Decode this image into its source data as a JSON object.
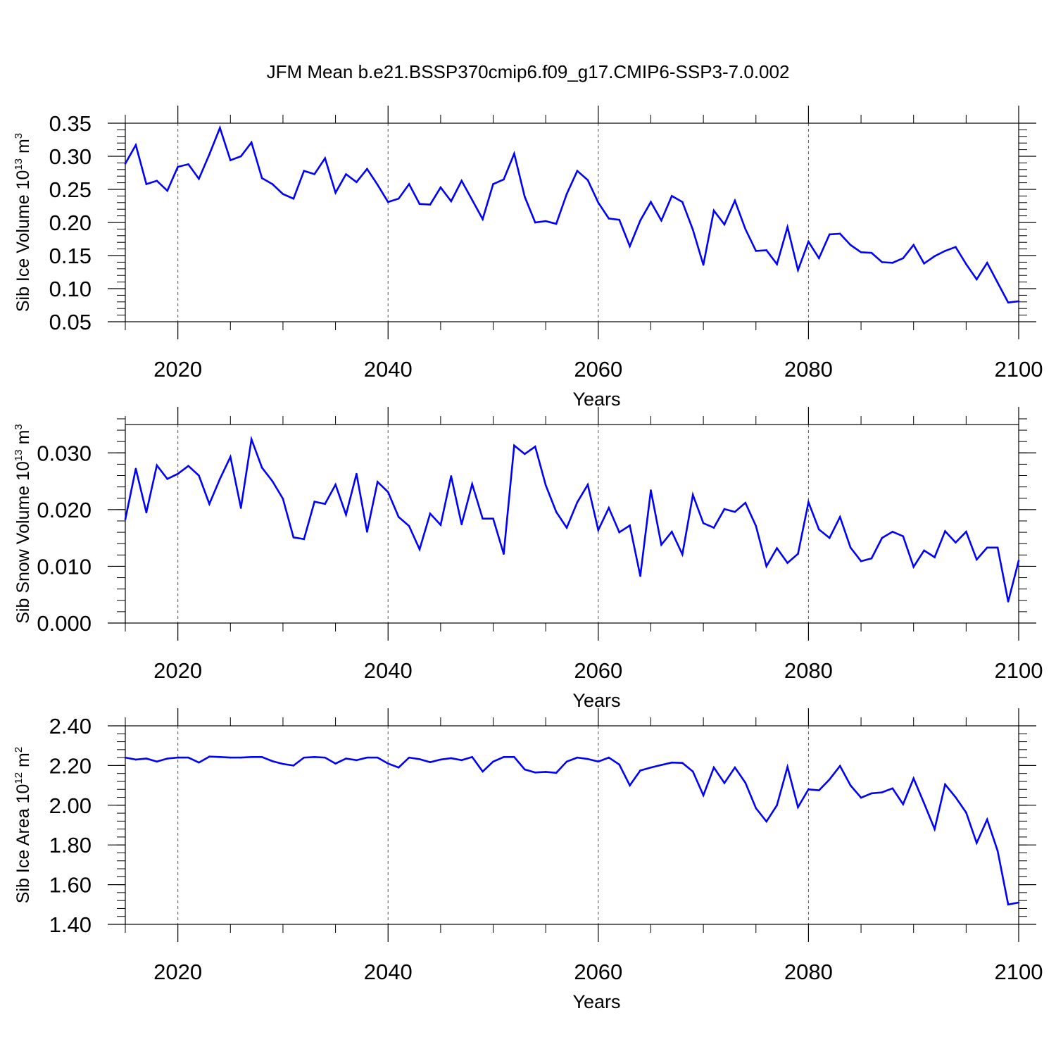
{
  "title": "JFM Mean b.e21.BSSP370cmip6.f09_g17.CMIP6-SSP3-7.0.002",
  "line_color": "#0000ff",
  "chart_data": [
    {
      "type": "line",
      "ylabel": {
        "prefix": "Sib Ice Volume 10",
        "exp": "13",
        "unit": " m",
        "unit_exp": "3"
      },
      "xlabel": "Years",
      "xlim": [
        2015,
        2100
      ],
      "ylim": [
        0.05,
        0.35
      ],
      "x_ticks": [
        2020,
        2040,
        2060,
        2080,
        2100
      ],
      "y_ticks": [
        "0.05",
        "0.10",
        "0.15",
        "0.20",
        "0.25",
        "0.30",
        "0.35"
      ],
      "y_minor": 0.01,
      "grid": "dashed vertical lines at major x ticks",
      "x": [
        2015,
        2016,
        2017,
        2018,
        2019,
        2020,
        2021,
        2022,
        2023,
        2024,
        2025,
        2026,
        2027,
        2028,
        2029,
        2030,
        2031,
        2032,
        2033,
        2034,
        2035,
        2036,
        2037,
        2038,
        2039,
        2040,
        2041,
        2042,
        2043,
        2044,
        2045,
        2046,
        2047,
        2048,
        2049,
        2050,
        2051,
        2052,
        2053,
        2054,
        2055,
        2056,
        2057,
        2058,
        2059,
        2060,
        2061,
        2062,
        2063,
        2064,
        2065,
        2066,
        2067,
        2068,
        2069,
        2070,
        2071,
        2072,
        2073,
        2074,
        2075,
        2076,
        2077,
        2078,
        2079,
        2080,
        2081,
        2082,
        2083,
        2084,
        2085,
        2086,
        2087,
        2088,
        2089,
        2090,
        2091,
        2092,
        2093,
        2094,
        2095,
        2096,
        2097,
        2098,
        2099,
        2100
      ],
      "values": [
        0.289,
        0.317,
        0.258,
        0.263,
        0.248,
        0.284,
        0.288,
        0.266,
        0.303,
        0.343,
        0.294,
        0.3,
        0.321,
        0.267,
        0.258,
        0.243,
        0.236,
        0.278,
        0.273,
        0.297,
        0.245,
        0.273,
        0.261,
        0.281,
        0.257,
        0.231,
        0.236,
        0.258,
        0.228,
        0.227,
        0.253,
        0.232,
        0.263,
        0.234,
        0.205,
        0.258,
        0.265,
        0.304,
        0.239,
        0.2,
        0.202,
        0.198,
        0.243,
        0.278,
        0.264,
        0.23,
        0.206,
        0.204,
        0.164,
        0.203,
        0.231,
        0.203,
        0.24,
        0.231,
        0.189,
        0.136,
        0.218,
        0.197,
        0.233,
        0.19,
        0.157,
        0.158,
        0.137,
        0.193,
        0.128,
        0.171,
        0.146,
        0.182,
        0.183,
        0.166,
        0.155,
        0.154,
        0.14,
        0.139,
        0.146,
        0.166,
        0.138,
        0.149,
        0.157,
        0.163,
        0.137,
        0.114,
        0.139,
        0.109,
        0.079,
        0.081
      ]
    },
    {
      "type": "line",
      "ylabel": {
        "prefix": "Sib Snow Volume 10",
        "exp": "13",
        "unit": " m",
        "unit_exp": "3"
      },
      "xlabel": "Years",
      "xlim": [
        2015,
        2100
      ],
      "ylim": [
        0.0,
        0.035
      ],
      "x_ticks": [
        2020,
        2040,
        2060,
        2080,
        2100
      ],
      "y_ticks": [
        "0.000",
        "0.010",
        "0.020",
        "0.030"
      ],
      "y_minor": 0.002,
      "grid": "dashed vertical lines at major x ticks",
      "x": [
        2015,
        2016,
        2017,
        2018,
        2019,
        2020,
        2021,
        2022,
        2023,
        2024,
        2025,
        2026,
        2027,
        2028,
        2029,
        2030,
        2031,
        2032,
        2033,
        2034,
        2035,
        2036,
        2037,
        2038,
        2039,
        2040,
        2041,
        2042,
        2043,
        2044,
        2045,
        2046,
        2047,
        2048,
        2049,
        2050,
        2051,
        2052,
        2053,
        2054,
        2055,
        2056,
        2057,
        2058,
        2059,
        2060,
        2061,
        2062,
        2063,
        2064,
        2065,
        2066,
        2067,
        2068,
        2069,
        2070,
        2071,
        2072,
        2073,
        2074,
        2075,
        2076,
        2077,
        2078,
        2079,
        2080,
        2081,
        2082,
        2083,
        2084,
        2085,
        2086,
        2087,
        2088,
        2089,
        2090,
        2091,
        2092,
        2093,
        2094,
        2095,
        2096,
        2097,
        2098,
        2099,
        2100
      ],
      "values": [
        0.0183,
        0.0272,
        0.0195,
        0.0278,
        0.0254,
        0.0263,
        0.0277,
        0.026,
        0.021,
        0.0254,
        0.0293,
        0.0203,
        0.0324,
        0.0274,
        0.025,
        0.0219,
        0.0151,
        0.0148,
        0.0214,
        0.021,
        0.0244,
        0.0191,
        0.0263,
        0.0161,
        0.0249,
        0.0231,
        0.0187,
        0.0171,
        0.013,
        0.0193,
        0.0173,
        0.0259,
        0.0174,
        0.0245,
        0.0184,
        0.0184,
        0.0122,
        0.0313,
        0.0298,
        0.0311,
        0.0243,
        0.0196,
        0.0168,
        0.0213,
        0.0244,
        0.0164,
        0.0203,
        0.016,
        0.0172,
        0.0083,
        0.0234,
        0.0138,
        0.0161,
        0.0121,
        0.0226,
        0.0176,
        0.0168,
        0.0201,
        0.0196,
        0.0212,
        0.0171,
        0.01,
        0.0132,
        0.0106,
        0.0122,
        0.0213,
        0.0165,
        0.015,
        0.0187,
        0.0133,
        0.0109,
        0.0114,
        0.015,
        0.0161,
        0.0153,
        0.0099,
        0.0128,
        0.0116,
        0.0162,
        0.0142,
        0.0161,
        0.0112,
        0.0133,
        0.0133,
        0.0038,
        0.011
      ]
    },
    {
      "type": "line",
      "ylabel": {
        "prefix": "Sib Ice Area 10",
        "exp": "12",
        "unit": " m",
        "unit_exp": "2"
      },
      "xlabel": "Years",
      "xlim": [
        2015,
        2100
      ],
      "ylim": [
        1.4,
        2.4
      ],
      "x_ticks": [
        2020,
        2040,
        2060,
        2080,
        2100
      ],
      "y_ticks": [
        "1.40",
        "1.60",
        "1.80",
        "2.00",
        "2.20",
        "2.40"
      ],
      "y_minor": 0.04,
      "grid": "dashed vertical lines at major x ticks",
      "x": [
        2015,
        2016,
        2017,
        2018,
        2019,
        2020,
        2021,
        2022,
        2023,
        2024,
        2025,
        2026,
        2027,
        2028,
        2029,
        2030,
        2031,
        2032,
        2033,
        2034,
        2035,
        2036,
        2037,
        2038,
        2039,
        2040,
        2041,
        2042,
        2043,
        2044,
        2045,
        2046,
        2047,
        2048,
        2049,
        2050,
        2051,
        2052,
        2053,
        2054,
        2055,
        2056,
        2057,
        2058,
        2059,
        2060,
        2061,
        2062,
        2063,
        2064,
        2065,
        2066,
        2067,
        2068,
        2069,
        2070,
        2071,
        2072,
        2073,
        2074,
        2075,
        2076,
        2077,
        2078,
        2079,
        2080,
        2081,
        2082,
        2083,
        2084,
        2085,
        2086,
        2087,
        2088,
        2089,
        2090,
        2091,
        2092,
        2093,
        2094,
        2095,
        2096,
        2097,
        2098,
        2099,
        2100
      ],
      "values": [
        2.24,
        2.23,
        2.235,
        2.22,
        2.235,
        2.24,
        2.24,
        2.215,
        2.245,
        2.243,
        2.24,
        2.24,
        2.243,
        2.243,
        2.222,
        2.208,
        2.2,
        2.24,
        2.243,
        2.24,
        2.21,
        2.235,
        2.227,
        2.24,
        2.24,
        2.21,
        2.19,
        2.24,
        2.232,
        2.217,
        2.23,
        2.237,
        2.227,
        2.243,
        2.17,
        2.22,
        2.243,
        2.243,
        2.18,
        2.165,
        2.168,
        2.163,
        2.22,
        2.24,
        2.233,
        2.22,
        2.24,
        2.205,
        2.1,
        2.175,
        2.19,
        2.203,
        2.215,
        2.213,
        2.17,
        2.05,
        2.19,
        2.112,
        2.19,
        2.113,
        1.985,
        1.918,
        2.0,
        2.193,
        1.99,
        2.08,
        2.075,
        2.13,
        2.198,
        2.1,
        2.038,
        2.06,
        2.065,
        2.085,
        2.005,
        2.135,
        2.01,
        1.88,
        2.105,
        2.04,
        1.963,
        1.81,
        1.928,
        1.77,
        1.5,
        1.51
      ]
    }
  ]
}
